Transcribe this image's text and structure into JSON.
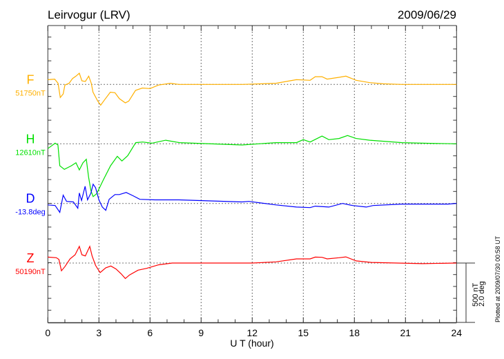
{
  "header": {
    "station": "Leirvogur (LRV)",
    "date": "2009/06/29"
  },
  "footer": {
    "plotted_at": "Plotted at 2009/07/30 00:58 UT"
  },
  "scale_bar": {
    "nt_label": "500 nT",
    "deg_label": "2.0 deg",
    "nt_value": 500,
    "deg_value": 2.0
  },
  "chart_data": {
    "type": "line",
    "title": "Leirvogur (LRV)",
    "xlabel": "U T (hour)",
    "xlim": [
      0,
      24
    ],
    "xticks": [
      "0",
      "3",
      "6",
      "9",
      "12",
      "15",
      "18",
      "21",
      "24"
    ],
    "grid": true,
    "series": [
      {
        "name": "F",
        "baseline_label": "51750nT",
        "baseline": 51750,
        "unit": "nT",
        "color": "#ffb000",
        "points": [
          [
            0,
            51790
          ],
          [
            0.4,
            51795
          ],
          [
            0.6,
            51760
          ],
          [
            0.73,
            51640
          ],
          [
            0.9,
            51670
          ],
          [
            1.0,
            51745
          ],
          [
            1.25,
            51760
          ],
          [
            1.45,
            51800
          ],
          [
            1.65,
            51820
          ],
          [
            1.85,
            51845
          ],
          [
            2.0,
            51780
          ],
          [
            2.2,
            51775
          ],
          [
            2.4,
            51820
          ],
          [
            2.55,
            51760
          ],
          [
            2.65,
            51685
          ],
          [
            2.93,
            51610
          ],
          [
            3.1,
            51575
          ],
          [
            3.33,
            51620
          ],
          [
            3.67,
            51685
          ],
          [
            3.94,
            51680
          ],
          [
            4.2,
            51630
          ],
          [
            4.55,
            51595
          ],
          [
            4.75,
            51610
          ],
          [
            5.15,
            51700
          ],
          [
            5.55,
            51720
          ],
          [
            6.0,
            51715
          ],
          [
            6.5,
            51745
          ],
          [
            7.2,
            51760
          ],
          [
            7.7,
            51750
          ],
          [
            11.4,
            51750
          ],
          [
            13.4,
            51760
          ],
          [
            14.6,
            51790
          ],
          [
            15.4,
            51785
          ],
          [
            15.7,
            51815
          ],
          [
            16.1,
            51815
          ],
          [
            16.4,
            51795
          ],
          [
            17.1,
            51810
          ],
          [
            17.5,
            51820
          ],
          [
            18.1,
            51785
          ],
          [
            18.9,
            51765
          ],
          [
            19.7,
            51755
          ],
          [
            20.8,
            51750
          ],
          [
            24,
            51750
          ]
        ]
      },
      {
        "name": "H",
        "baseline_label": "12610nT",
        "baseline": 12610,
        "unit": "nT",
        "color": "#00e000",
        "points": [
          [
            0,
            12570
          ],
          [
            0.43,
            12615
          ],
          [
            0.59,
            12600
          ],
          [
            0.7,
            12425
          ],
          [
            0.97,
            12395
          ],
          [
            1.38,
            12425
          ],
          [
            1.65,
            12450
          ],
          [
            1.85,
            12390
          ],
          [
            2.06,
            12450
          ],
          [
            2.26,
            12480
          ],
          [
            2.39,
            12330
          ],
          [
            2.53,
            12215
          ],
          [
            2.66,
            12165
          ],
          [
            2.87,
            12190
          ],
          [
            3.0,
            12230
          ],
          [
            3.27,
            12310
          ],
          [
            3.68,
            12425
          ],
          [
            4.08,
            12505
          ],
          [
            4.35,
            12465
          ],
          [
            4.69,
            12510
          ],
          [
            5.16,
            12620
          ],
          [
            5.57,
            12625
          ],
          [
            6.11,
            12615
          ],
          [
            6.92,
            12640
          ],
          [
            7.73,
            12620
          ],
          [
            11.4,
            12600
          ],
          [
            13.4,
            12620
          ],
          [
            14.6,
            12620
          ],
          [
            15.0,
            12645
          ],
          [
            15.4,
            12625
          ],
          [
            16.1,
            12675
          ],
          [
            16.5,
            12645
          ],
          [
            17.1,
            12655
          ],
          [
            17.6,
            12680
          ],
          [
            18.1,
            12655
          ],
          [
            18.9,
            12640
          ],
          [
            20.8,
            12620
          ],
          [
            22,
            12615
          ],
          [
            24,
            12610
          ]
        ]
      },
      {
        "name": "D",
        "baseline_label": "-13.8deg",
        "baseline": -13.8,
        "unit": "deg",
        "color": "#0000ff",
        "points": [
          [
            0,
            -13.85
          ],
          [
            0.43,
            -13.87
          ],
          [
            0.7,
            -14.1
          ],
          [
            0.9,
            -13.52
          ],
          [
            1.1,
            -13.73
          ],
          [
            1.5,
            -13.75
          ],
          [
            1.76,
            -13.96
          ],
          [
            1.85,
            -13.45
          ],
          [
            1.98,
            -13.7
          ],
          [
            2.19,
            -13.22
          ],
          [
            2.33,
            -13.68
          ],
          [
            2.53,
            -13.45
          ],
          [
            2.66,
            -13.15
          ],
          [
            2.8,
            -13.27
          ],
          [
            3.0,
            -13.68
          ],
          [
            3.2,
            -13.92
          ],
          [
            3.4,
            -14.03
          ],
          [
            3.6,
            -13.66
          ],
          [
            3.94,
            -13.5
          ],
          [
            4.2,
            -13.5
          ],
          [
            4.6,
            -13.43
          ],
          [
            5.0,
            -13.54
          ],
          [
            5.4,
            -13.66
          ],
          [
            6.3,
            -13.68
          ],
          [
            7.7,
            -13.68
          ],
          [
            11.4,
            -13.75
          ],
          [
            11.8,
            -13.73
          ],
          [
            13.4,
            -13.85
          ],
          [
            14.6,
            -13.92
          ],
          [
            15.4,
            -13.94
          ],
          [
            15.7,
            -13.89
          ],
          [
            16.5,
            -13.92
          ],
          [
            17.3,
            -13.8
          ],
          [
            17.9,
            -13.87
          ],
          [
            18.7,
            -13.92
          ],
          [
            19.1,
            -13.87
          ],
          [
            20.8,
            -13.82
          ],
          [
            23.5,
            -13.82
          ],
          [
            24,
            -13.8
          ]
        ]
      },
      {
        "name": "Z",
        "baseline_label": "50190nT",
        "baseline": 50190,
        "unit": "nT",
        "color": "#ff0000",
        "points": [
          [
            0,
            50240
          ],
          [
            0.5,
            50235
          ],
          [
            0.65,
            50220
          ],
          [
            0.8,
            50125
          ],
          [
            1.0,
            50160
          ],
          [
            1.3,
            50225
          ],
          [
            1.6,
            50260
          ],
          [
            1.85,
            50330
          ],
          [
            2.0,
            50260
          ],
          [
            2.2,
            50250
          ],
          [
            2.46,
            50330
          ],
          [
            2.6,
            50250
          ],
          [
            2.8,
            50170
          ],
          [
            3.07,
            50110
          ],
          [
            3.4,
            50150
          ],
          [
            3.7,
            50165
          ],
          [
            4.0,
            50140
          ],
          [
            4.3,
            50100
          ],
          [
            4.55,
            50060
          ],
          [
            4.8,
            50090
          ],
          [
            5.3,
            50130
          ],
          [
            5.8,
            50145
          ],
          [
            6.5,
            50175
          ],
          [
            7.3,
            50190
          ],
          [
            12,
            50190
          ],
          [
            13.4,
            50200
          ],
          [
            14.6,
            50225
          ],
          [
            15.4,
            50225
          ],
          [
            15.7,
            50240
          ],
          [
            16.1,
            50238
          ],
          [
            16.4,
            50225
          ],
          [
            17.1,
            50235
          ],
          [
            17.5,
            50242
          ],
          [
            18.1,
            50208
          ],
          [
            19,
            50195
          ],
          [
            20.5,
            50190
          ],
          [
            22,
            50185
          ],
          [
            24,
            50190
          ]
        ]
      }
    ]
  }
}
